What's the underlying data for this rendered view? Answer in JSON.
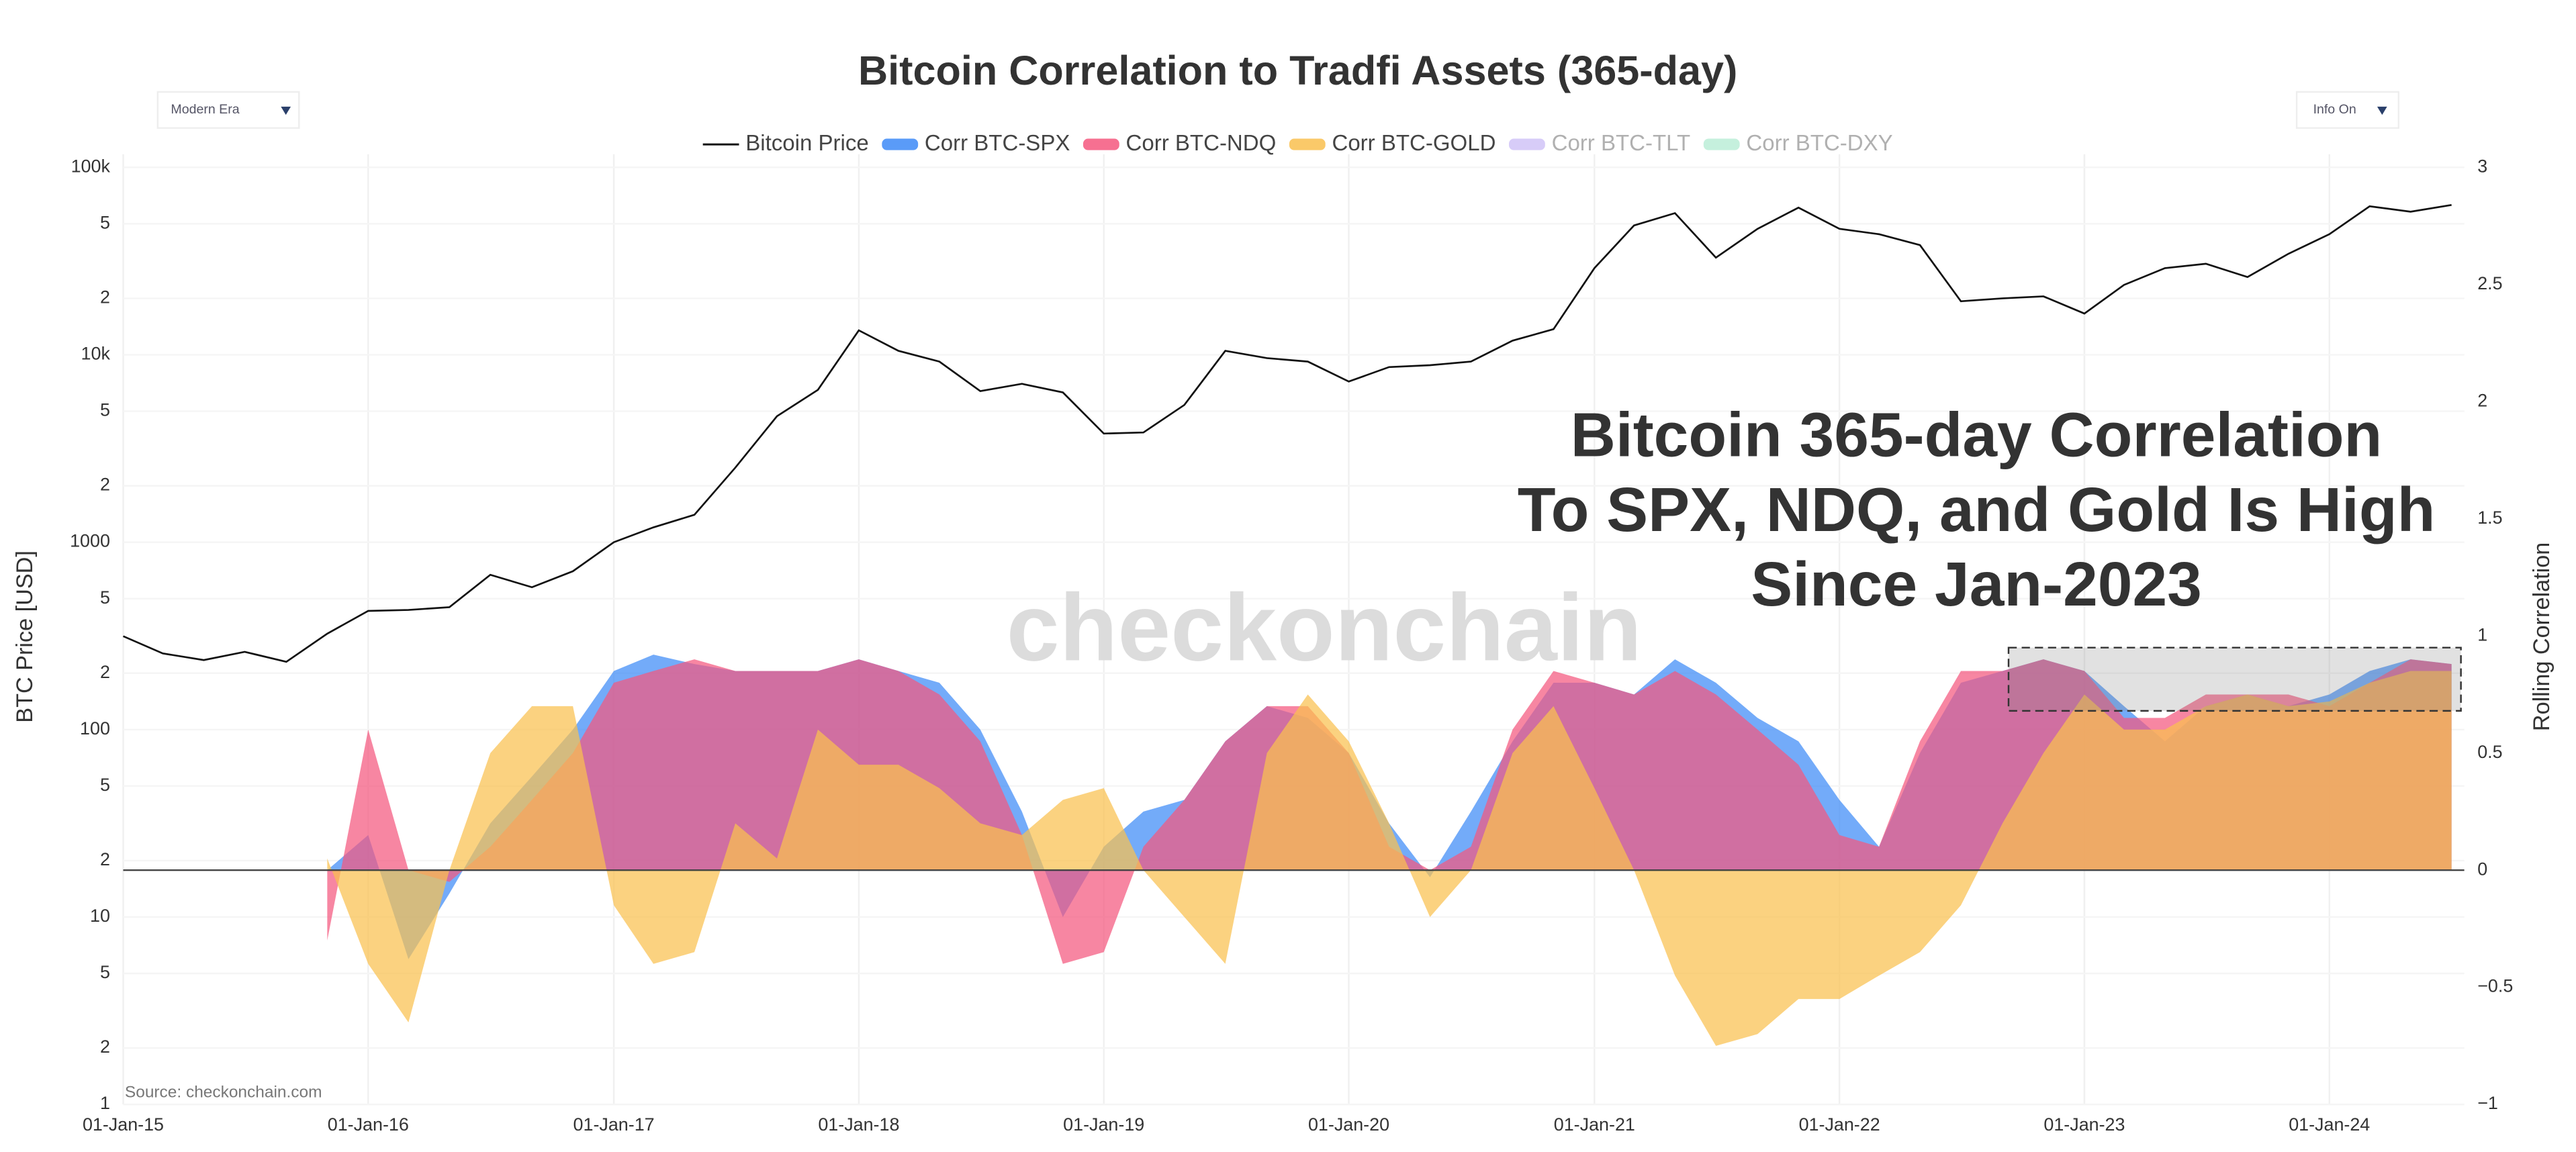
{
  "controls": {
    "era": "Modern Era",
    "info": "Info On"
  },
  "chart_data": {
    "type": "line",
    "title": "Bitcoin Correlation to Tradfi Assets (365-day)",
    "annotation": [
      "Bitcoin 365-day Correlation",
      "To SPX, NDQ, and Gold Is High",
      "Since Jan-2023"
    ],
    "watermark": "checkonchain",
    "source": "Source: checkonchain.com",
    "y_label": "BTC Price [USD]",
    "y2_label": "Rolling Correlation",
    "log_y": true,
    "grid": true,
    "legend": "top",
    "x": [
      "2015-01-01",
      "2015-03-01",
      "2015-05-01",
      "2015-07-01",
      "2015-09-01",
      "2015-11-01",
      "2016-01-01",
      "2016-03-01",
      "2016-05-01",
      "2016-07-01",
      "2016-09-01",
      "2016-11-01",
      "2017-01-01",
      "2017-03-01",
      "2017-05-01",
      "2017-07-01",
      "2017-09-01",
      "2017-11-01",
      "2018-01-01",
      "2018-03-01",
      "2018-05-01",
      "2018-07-01",
      "2018-09-01",
      "2018-11-01",
      "2019-01-01",
      "2019-03-01",
      "2019-05-01",
      "2019-07-01",
      "2019-09-01",
      "2019-11-01",
      "2020-01-01",
      "2020-03-01",
      "2020-05-01",
      "2020-07-01",
      "2020-09-01",
      "2020-11-01",
      "2021-01-01",
      "2021-03-01",
      "2021-05-01",
      "2021-07-01",
      "2021-09-01",
      "2021-11-01",
      "2022-01-01",
      "2022-03-01",
      "2022-05-01",
      "2022-07-01",
      "2022-09-01",
      "2022-11-01",
      "2023-01-01",
      "2023-03-01",
      "2023-05-01",
      "2023-07-01",
      "2023-09-01",
      "2023-11-01",
      "2024-01-01",
      "2024-03-01",
      "2024-05-01",
      "2024-07-01"
    ],
    "xlim": [
      "2015-01-01",
      "2024-07-20"
    ],
    "xticks": [
      {
        "value": "2015-01-01",
        "label": "01-Jan-15"
      },
      {
        "value": "2016-01-01",
        "label": "01-Jan-16"
      },
      {
        "value": "2017-01-01",
        "label": "01-Jan-17"
      },
      {
        "value": "2018-01-01",
        "label": "01-Jan-18"
      },
      {
        "value": "2019-01-01",
        "label": "01-Jan-19"
      },
      {
        "value": "2020-01-01",
        "label": "01-Jan-20"
      },
      {
        "value": "2021-01-01",
        "label": "01-Jan-21"
      },
      {
        "value": "2022-01-01",
        "label": "01-Jan-22"
      },
      {
        "value": "2023-01-01",
        "label": "01-Jan-23"
      },
      {
        "value": "2024-01-01",
        "label": "01-Jan-24"
      }
    ],
    "ylim": [
      1,
      100000
    ],
    "yticks": [
      1,
      2,
      5,
      10,
      {
        "value": 20,
        "label": "2"
      },
      {
        "value": 50,
        "label": "5"
      },
      100,
      {
        "value": 200,
        "label": "2"
      },
      {
        "value": 500,
        "label": "5"
      },
      1000,
      {
        "value": 2000,
        "label": "2"
      },
      {
        "value": 5000,
        "label": "5"
      },
      {
        "value": 10000,
        "label": "10k"
      },
      {
        "value": 20000,
        "label": "2"
      },
      {
        "value": 50000,
        "label": "5"
      },
      {
        "value": 100000,
        "label": "100k"
      }
    ],
    "y2lim": [
      -1,
      3
    ],
    "y2ticks": [
      {
        "value": -1,
        "label": "−1"
      },
      {
        "value": -0.5,
        "label": "−0.5"
      },
      0,
      0.5,
      1,
      1.5,
      2,
      2.5,
      3
    ],
    "highlight": {
      "x": [
        "2022-09-10",
        "2024-07-15"
      ],
      "y2": [
        0.68,
        0.95
      ]
    },
    "series": [
      {
        "name": "Bitcoin Price",
        "color": "#111111",
        "style": "line",
        "visible": true,
        "values": [
          315,
          255,
          235,
          260,
          230,
          325,
          430,
          435,
          450,
          670,
          575,
          700,
          1000,
          1200,
          1400,
          2500,
          4700,
          6500,
          13500,
          10500,
          9200,
          6400,
          7000,
          6300,
          3800,
          3850,
          5400,
          10500,
          9600,
          9200,
          7200,
          8600,
          8800,
          9200,
          11900,
          13700,
          29000,
          49000,
          57000,
          33000,
          47000,
          61000,
          47000,
          44000,
          38500,
          19300,
          20000,
          20500,
          16600,
          23600,
          29000,
          30600,
          26000,
          34600,
          44000,
          62000,
          58000,
          63000
        ]
      },
      {
        "name": "Corr BTC-SPX",
        "color": "#3d8af7",
        "style": "area",
        "axis": "y2",
        "visible": true,
        "values": [
          null,
          null,
          null,
          null,
          null,
          0.0,
          0.15,
          -0.38,
          -0.1,
          0.2,
          0.4,
          0.6,
          0.85,
          0.92,
          0.88,
          0.85,
          0.85,
          0.85,
          0.9,
          0.85,
          0.8,
          0.6,
          0.25,
          -0.2,
          0.1,
          0.25,
          0.3,
          0.55,
          0.7,
          0.65,
          0.5,
          0.2,
          -0.03,
          0.25,
          0.55,
          0.8,
          0.8,
          0.75,
          0.9,
          0.8,
          0.65,
          0.55,
          0.3,
          0.1,
          0.5,
          0.8,
          0.85,
          0.9,
          0.85,
          0.7,
          0.55,
          0.7,
          0.75,
          0.7,
          0.75,
          0.85,
          0.9,
          0.88
        ]
      },
      {
        "name": "Corr BTC-NDQ",
        "color": "#f4577e",
        "style": "area",
        "axis": "y2",
        "visible": true,
        "values": [
          null,
          null,
          null,
          null,
          null,
          -0.3,
          0.6,
          0.0,
          -0.05,
          0.1,
          0.3,
          0.5,
          0.8,
          0.85,
          0.9,
          0.85,
          0.85,
          0.85,
          0.9,
          0.85,
          0.75,
          0.55,
          0.15,
          -0.4,
          -0.35,
          0.1,
          0.3,
          0.55,
          0.7,
          0.7,
          0.5,
          0.1,
          0.0,
          0.1,
          0.6,
          0.85,
          0.8,
          0.75,
          0.85,
          0.75,
          0.6,
          0.45,
          0.15,
          0.1,
          0.55,
          0.85,
          0.85,
          0.9,
          0.85,
          0.65,
          0.65,
          0.75,
          0.75,
          0.75,
          0.7,
          0.8,
          0.9,
          0.88
        ]
      },
      {
        "name": "Corr BTC-GOLD",
        "color": "#f9c04f",
        "style": "area",
        "axis": "y2",
        "visible": true,
        "values": [
          null,
          null,
          null,
          null,
          null,
          0.05,
          -0.4,
          -0.65,
          0.0,
          0.5,
          0.7,
          0.7,
          -0.15,
          -0.4,
          -0.35,
          0.2,
          0.05,
          0.6,
          0.45,
          0.45,
          0.35,
          0.2,
          0.15,
          0.3,
          0.35,
          0.0,
          -0.2,
          -0.4,
          0.5,
          0.75,
          0.55,
          0.2,
          -0.2,
          0.0,
          0.5,
          0.7,
          0.35,
          0.0,
          -0.45,
          -0.75,
          -0.7,
          -0.55,
          -0.55,
          -0.45,
          -0.35,
          -0.15,
          0.2,
          0.5,
          0.75,
          0.6,
          0.6,
          0.7,
          0.75,
          0.7,
          0.72,
          0.8,
          0.85,
          0.85
        ]
      },
      {
        "name": "Corr BTC-TLT",
        "color": "#d3c6f7",
        "style": "area",
        "axis": "y2",
        "visible": false
      },
      {
        "name": "Corr BTC-DXY",
        "color": "#bfeed9",
        "style": "area",
        "axis": "y2",
        "visible": false
      }
    ]
  }
}
